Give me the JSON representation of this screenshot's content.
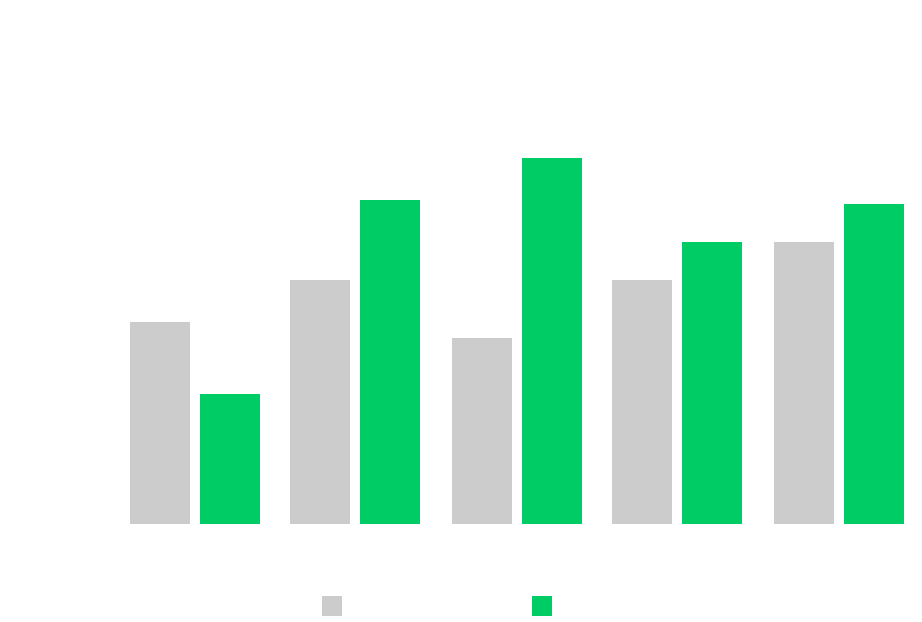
{
  "chart_data": {
    "type": "bar",
    "categories": [
      "",
      "",
      "",
      "",
      ""
    ],
    "series": [
      {
        "values": [
          202,
          244,
          186,
          244,
          282
        ],
        "color": "#cccccc"
      },
      {
        "values": [
          130,
          324,
          366,
          282,
          320
        ],
        "color": "#00cc66"
      }
    ],
    "ylim": [
      0,
      366
    ],
    "grid": false,
    "legend": "bottom-center",
    "title": "",
    "xlabel": "",
    "ylabel": ""
  }
}
